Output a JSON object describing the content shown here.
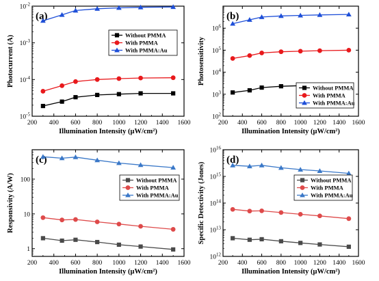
{
  "chart_data": [
    {
      "type": "line",
      "panel": "(a)",
      "xlabel": "Illumination Intensity (μW/cm²)",
      "ylabel": "Photocurrent (A)",
      "xlim": [
        200,
        1600
      ],
      "xticks": [
        200,
        400,
        600,
        800,
        1000,
        1200,
        1400,
        1600
      ],
      "ylim": [
        1e-05,
        0.01
      ],
      "yscale": "log",
      "yticks": [
        1e-05,
        0.0001,
        0.001,
        0.01
      ],
      "ytick_labels": [
        [
          "10",
          "-5"
        ],
        [
          "10",
          "-4"
        ],
        [
          "10",
          "-3"
        ],
        [
          "10",
          "-2"
        ]
      ],
      "legend": "center-right",
      "x": [
        300,
        475,
        600,
        800,
        1000,
        1200,
        1500
      ],
      "series": [
        {
          "name": "Without PMMA",
          "color": "#000000",
          "marker": "square",
          "values": [
            1.9e-05,
            2.5e-05,
            3.3e-05,
            3.8e-05,
            4e-05,
            4.2e-05,
            4.2e-05
          ]
        },
        {
          "name": "With PMMA",
          "color": "#e8191c",
          "marker": "circle",
          "values": [
            4.8e-05,
            6.8e-05,
            8.8e-05,
            0.0001,
            0.000106,
            0.00011,
            0.000112
          ]
        },
        {
          "name": "With PMMA:Au",
          "color": "#1e4fd8",
          "marker": "triangle",
          "values": [
            0.004,
            0.0058,
            0.0076,
            0.0085,
            0.009,
            0.0093,
            0.0095
          ]
        }
      ]
    },
    {
      "type": "line",
      "panel": "(b)",
      "xlabel": "Illumination Intensity (μW/cm²)",
      "ylabel": "Photosensitivity",
      "xlim": [
        200,
        1600
      ],
      "xticks": [
        200,
        400,
        600,
        800,
        1000,
        1200,
        1400,
        1600
      ],
      "ylim": [
        100.0,
        10000000.0
      ],
      "yscale": "log",
      "yticks": [
        100.0,
        1000.0,
        10000.0,
        100000.0,
        1000000.0
      ],
      "ytick_labels": [
        [
          "10",
          "2"
        ],
        [
          "10",
          "3"
        ],
        [
          "10",
          "4"
        ],
        [
          "10",
          "5"
        ],
        [
          "10",
          "6"
        ]
      ],
      "legend": "lower-right",
      "x": [
        300,
        475,
        600,
        800,
        1000,
        1200,
        1500
      ],
      "series": [
        {
          "name": "Without PMMA",
          "color": "#000000",
          "marker": "square",
          "values": [
            1200,
            1500,
            2000,
            2300,
            2450,
            2550,
            2600
          ]
        },
        {
          "name": "With PMMA",
          "color": "#e8191c",
          "marker": "circle",
          "values": [
            42000,
            57000,
            75000,
            85000,
            90000,
            95000,
            100000
          ]
        },
        {
          "name": "With PMMA:Au",
          "color": "#1e4fd8",
          "marker": "triangle",
          "values": [
            1600000.0,
            2400000.0,
            3200000.0,
            3600000.0,
            3800000.0,
            4000000.0,
            4200000.0
          ]
        }
      ]
    },
    {
      "type": "line",
      "panel": "(c)",
      "xlabel": "Illumination Intensity (μW/cm²)",
      "ylabel": "Responsivity (A/W)",
      "xlim": [
        200,
        1600
      ],
      "xticks": [
        200,
        400,
        600,
        800,
        1000,
        1200,
        1400,
        1600
      ],
      "ylim": [
        0.6,
        700
      ],
      "yscale": "log",
      "yticks": [
        1,
        10,
        100
      ],
      "ytick_labels": [
        [
          "1",
          ""
        ],
        [
          "10",
          ""
        ],
        [
          "100",
          ""
        ]
      ],
      "legend": "center-right",
      "x": [
        300,
        475,
        600,
        800,
        1000,
        1200,
        1500
      ],
      "series": [
        {
          "name": "Without PMMA",
          "color": "#4a4a4a",
          "marker": "square",
          "values": [
            2.0,
            1.7,
            1.8,
            1.55,
            1.3,
            1.15,
            0.95
          ]
        },
        {
          "name": "With PMMA",
          "color": "#de4a4a",
          "marker": "circle",
          "values": [
            7.8,
            6.7,
            6.9,
            5.9,
            5.1,
            4.4,
            3.6
          ]
        },
        {
          "name": "With PMMA:Au",
          "color": "#3a78c8",
          "marker": "triangle",
          "values": [
            440,
            400,
            430,
            350,
            290,
            255,
            215
          ]
        }
      ]
    },
    {
      "type": "line",
      "panel": "(d)",
      "xlabel": "Illumination Intensity (μW/cm²)",
      "ylabel": "Specific Detectivity (Jones)",
      "xlim": [
        200,
        1600
      ],
      "xticks": [
        200,
        400,
        600,
        800,
        1000,
        1200,
        1400,
        1600
      ],
      "ylim": [
        1000000000000.0,
        1e+16
      ],
      "yscale": "log",
      "yticks": [
        1000000000000.0,
        10000000000000.0,
        100000000000000.0,
        1000000000000000.0,
        1e+16
      ],
      "ytick_labels": [
        [
          "10",
          "12"
        ],
        [
          "10",
          "13"
        ],
        [
          "10",
          "14"
        ],
        [
          "10",
          "15"
        ],
        [
          "10",
          "16"
        ]
      ],
      "legend": "center-right",
      "x": [
        300,
        475,
        600,
        800,
        1000,
        1200,
        1500
      ],
      "series": [
        {
          "name": "Without PMMA",
          "color": "#4a4a4a",
          "marker": "square",
          "values": [
            4800000000000.0,
            4200000000000.0,
            4400000000000.0,
            3700000000000.0,
            3200000000000.0,
            2800000000000.0,
            2300000000000.0
          ]
        },
        {
          "name": "With PMMA",
          "color": "#de4a4a",
          "marker": "circle",
          "values": [
            58000000000000.0,
            50000000000000.0,
            51000000000000.0,
            44000000000000.0,
            38000000000000.0,
            33000000000000.0,
            26000000000000.0
          ]
        },
        {
          "name": "With PMMA:Au",
          "color": "#3a78c8",
          "marker": "triangle",
          "values": [
            2600000000000000.0,
            2400000000000000.0,
            2600000000000000.0,
            2100000000000000.0,
            1800000000000000.0,
            1600000000000000.0,
            1300000000000000.0
          ]
        }
      ]
    }
  ]
}
